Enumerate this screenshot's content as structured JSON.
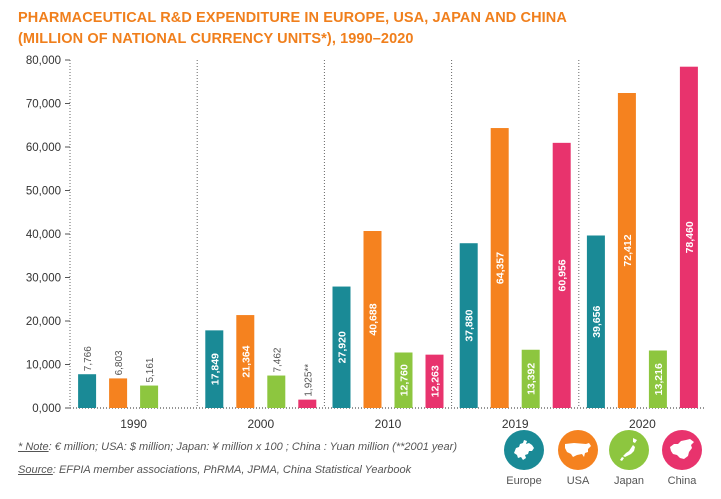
{
  "title_line1": "PHARMACEUTICAL R&D EXPENDITURE IN EUROPE, USA, JAPAN AND CHINA",
  "title_line2": "(MILLION OF NATIONAL CURRENCY UNITS*), 1990–2020",
  "note_prefix": "* Note",
  "note_text": ": € million; USA: $ million; Japan: ¥ million x 100 ; China : Yuan million (**2001 year)",
  "source_prefix": "Source",
  "source_text": ": EFPIA member associations, PhRMA, JPMA, China Statistical Yearbook",
  "legend": [
    {
      "name": "Europe",
      "color": "#1a8a96",
      "icon": "europe-map-icon"
    },
    {
      "name": "USA",
      "color": "#f5821f",
      "icon": "usa-map-icon"
    },
    {
      "name": "Japan",
      "color": "#8dc63f",
      "icon": "japan-map-icon"
    },
    {
      "name": "China",
      "color": "#e8336d",
      "icon": "china-map-icon"
    }
  ],
  "chart_data": {
    "type": "bar",
    "categories": [
      "1990",
      "2000",
      "2010",
      "2019",
      "2020"
    ],
    "series": [
      {
        "name": "Europe",
        "color": "#1a8a96",
        "values": [
          7766,
          17849,
          27920,
          37880,
          39656
        ],
        "labels": [
          "7,766",
          "17,849",
          "27,920",
          "37,880",
          "39,656"
        ]
      },
      {
        "name": "USA",
        "color": "#f5821f",
        "values": [
          6803,
          21364,
          40688,
          64357,
          72412
        ],
        "labels": [
          "6,803",
          "21,364",
          "40,688",
          "64,357",
          "72,412"
        ]
      },
      {
        "name": "Japan",
        "color": "#8dc63f",
        "values": [
          5161,
          7462,
          12760,
          13392,
          13216
        ],
        "labels": [
          "5,161",
          "7,462",
          "12,760",
          "13,392",
          "13,216"
        ]
      },
      {
        "name": "China",
        "color": "#e8336d",
        "values": [
          null,
          1925,
          12263,
          60956,
          78460
        ],
        "labels": [
          "",
          "1,925**",
          "12,263",
          "60,956",
          "78,460"
        ]
      }
    ],
    "yticks": [
      "0,000",
      "10,000",
      "20,000",
      "30,000",
      "40,000",
      "50,000",
      "60,000",
      "70,000",
      "80,000"
    ],
    "ylim": [
      0,
      80000
    ],
    "grid": "vertical dashed separators between year groups",
    "legend_position": "bottom-right"
  }
}
